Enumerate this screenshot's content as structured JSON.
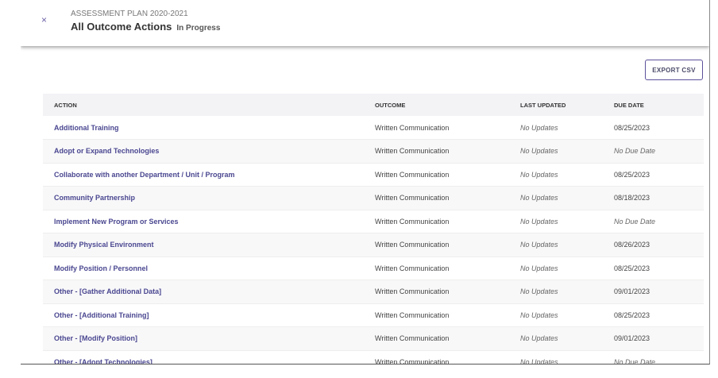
{
  "header": {
    "subtitle": "ASSESSMENT PLAN 2020-2021",
    "title": "All Outcome Actions",
    "status": "In Progress",
    "close_icon": "×"
  },
  "toolbar": {
    "export_label": "EXPORT CSV"
  },
  "table": {
    "columns": [
      "ACTION",
      "OUTCOME",
      "LAST UPDATED",
      "DUE DATE"
    ],
    "rows": [
      [
        "Additional Training",
        "Written Communication",
        "No Updates",
        "08/25/2023"
      ],
      [
        "Adopt or Expand Technologies",
        "Written Communication",
        "No Updates",
        "No Due Date"
      ],
      [
        "Collaborate with another Department / Unit / Program",
        "Written Communication",
        "No Updates",
        "08/25/2023"
      ],
      [
        "Community Partnership",
        "Written Communication",
        "No Updates",
        "08/18/2023"
      ],
      [
        "Implement New Program or Services",
        "Written Communication",
        "No Updates",
        "No Due Date"
      ],
      [
        "Modify Physical Environment",
        "Written Communication",
        "No Updates",
        "08/26/2023"
      ],
      [
        "Modify Position / Personnel",
        "Written Communication",
        "No Updates",
        "08/25/2023"
      ],
      [
        "Other - [Gather Additional Data]",
        "Written Communication",
        "No Updates",
        "09/01/2023"
      ],
      [
        "Other - [Additional Training]",
        "Written Communication",
        "No Updates",
        "08/25/2023"
      ],
      [
        "Other - [Modify Position]",
        "Written Communication",
        "No Updates",
        "09/01/2023"
      ],
      [
        "Other - [Adopt Technologies]",
        "Written Communication",
        "No Updates",
        "No Due Date"
      ]
    ]
  }
}
